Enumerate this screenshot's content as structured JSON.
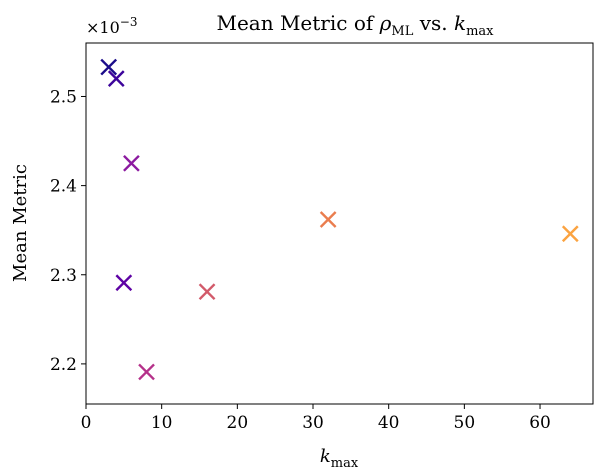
{
  "chart_data": {
    "type": "scatter",
    "title": "Mean Metric of ρML vs. kmax",
    "title_parts": {
      "prefix": "Mean Metric of ",
      "rho": "ρ",
      "rho_sub": "ML",
      "middle": " vs. ",
      "k": "k",
      "k_sub": "max"
    },
    "xlabel": "kmax",
    "xlabel_parts": {
      "k": "k",
      "k_sub": "max"
    },
    "ylabel": "Mean Metric",
    "y_offset_text": "×10−3",
    "y_offset_parts": {
      "base": "×10",
      "exp": "−3"
    },
    "xlim": [
      0,
      67
    ],
    "ylim": [
      2.155,
      2.56
    ],
    "x_ticks": [
      0,
      10,
      20,
      30,
      40,
      50,
      60
    ],
    "x_tick_labels": [
      "0",
      "10",
      "20",
      "30",
      "40",
      "50",
      "60"
    ],
    "y_ticks": [
      2.2,
      2.3,
      2.4,
      2.5
    ],
    "y_tick_labels": [
      "2.2",
      "2.3",
      "2.4",
      "2.5"
    ],
    "grid": false,
    "marker": "x",
    "points": [
      {
        "x": 3,
        "y": 2.533,
        "color": "#1b0c8a"
      },
      {
        "x": 4,
        "y": 2.52,
        "color": "#3d049b"
      },
      {
        "x": 5,
        "y": 2.291,
        "color": "#5e02a4"
      },
      {
        "x": 6,
        "y": 2.425,
        "color": "#8c1aa0"
      },
      {
        "x": 8,
        "y": 2.191,
        "color": "#b5318a"
      },
      {
        "x": 16,
        "y": 2.281,
        "color": "#d25a6a"
      },
      {
        "x": 32,
        "y": 2.362,
        "color": "#ea7d4e"
      },
      {
        "x": 64,
        "y": 2.346,
        "color": "#fba340"
      }
    ]
  }
}
